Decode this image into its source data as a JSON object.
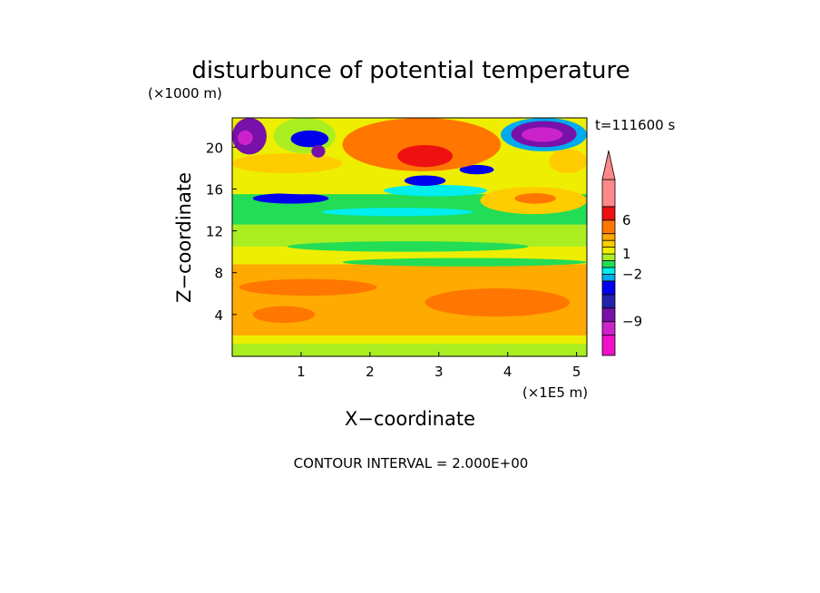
{
  "chart_data": {
    "type": "heatmap",
    "title": "disturbunce of potential temperature",
    "time_label": "t=111600 s",
    "x_axis": {
      "label": "X−coordinate",
      "unit_label": "(×1E5 m)",
      "range": [
        0,
        5.15
      ],
      "ticks": [
        1,
        2,
        3,
        4,
        5
      ],
      "tick_labels": [
        "1",
        "2",
        "3",
        "4",
        "5"
      ]
    },
    "y_axis": {
      "label": "Z−coordinate",
      "unit_label": "(×1000 m)",
      "range": [
        0,
        22.8
      ],
      "ticks": [
        4,
        8,
        12,
        16,
        20
      ],
      "tick_labels": [
        "4",
        "8",
        "12",
        "16",
        "20"
      ]
    },
    "contour_interval_text": "CONTOUR INTERVAL = 2.000E+00",
    "colorbar": {
      "labels": [
        {
          "text": "6",
          "value": 6
        },
        {
          "text": "1",
          "value": 1
        },
        {
          "text": "−2",
          "value": -2
        },
        {
          "text": "−9",
          "value": -9
        }
      ],
      "bands": [
        {
          "from": -14,
          "to": -11,
          "color": "#ee11c8"
        },
        {
          "from": -11,
          "to": -9,
          "color": "#cc22cc"
        },
        {
          "from": -9,
          "to": -7,
          "color": "#7711aa"
        },
        {
          "from": -7,
          "to": -5,
          "color": "#2222aa"
        },
        {
          "from": -5,
          "to": -3,
          "color": "#0000ee"
        },
        {
          "from": -3,
          "to": -2,
          "color": "#00aaee"
        },
        {
          "from": -2,
          "to": -1,
          "color": "#00eeee"
        },
        {
          "from": -1,
          "to": 0,
          "color": "#22dd55"
        },
        {
          "from": 0,
          "to": 1,
          "color": "#aaee22"
        },
        {
          "from": 1,
          "to": 2,
          "color": "#eeee00"
        },
        {
          "from": 2,
          "to": 3,
          "color": "#ffcc00"
        },
        {
          "from": 3,
          "to": 4,
          "color": "#ffaa00"
        },
        {
          "from": 4,
          "to": 6,
          "color": "#ff7700"
        },
        {
          "from": 6,
          "to": 8,
          "color": "#ee1111"
        },
        {
          "from": 8,
          "to": 12,
          "color": "#ff8888"
        }
      ],
      "extend_max_color": "#ff8888"
    },
    "regions": [
      {
        "x0": 0,
        "x1": 5.15,
        "z0": 0,
        "z1": 22.8,
        "value": 1.5
      },
      {
        "x0": 0,
        "x1": 5.15,
        "z0": 0,
        "z1": 1.2,
        "value": 0.5
      },
      {
        "x0": 0,
        "x1": 5.15,
        "z0": 2,
        "z1": 8.8,
        "value": 3.5
      },
      {
        "x0": 0.1,
        "x1": 2.1,
        "z0": 5.8,
        "z1": 7.4,
        "value": 4.5
      },
      {
        "x0": 2.8,
        "x1": 4.9,
        "z0": 3.8,
        "z1": 6.5,
        "value": 4.5
      },
      {
        "x0": 0.3,
        "x1": 1.2,
        "z0": 3.2,
        "z1": 4.8,
        "value": 4.5
      },
      {
        "x0": 0,
        "x1": 5.15,
        "z0": 10.5,
        "z1": 12.6,
        "value": 0.5
      },
      {
        "x0": 0.8,
        "x1": 4.3,
        "z0": 10,
        "z1": 11,
        "value": -0.5
      },
      {
        "x0": 1.6,
        "x1": 5.15,
        "z0": 8.6,
        "z1": 9.4,
        "value": -0.5
      },
      {
        "x0": 0,
        "x1": 5.15,
        "z0": 12.6,
        "z1": 15.5,
        "value": -0.5
      },
      {
        "x0": 1.3,
        "x1": 3.5,
        "z0": 13.4,
        "z1": 14.2,
        "value": -1.5
      },
      {
        "x0": 0.3,
        "x1": 1.4,
        "z0": 14.6,
        "z1": 15.6,
        "value": -4
      },
      {
        "x0": 3.6,
        "x1": 5.15,
        "z0": 13.6,
        "z1": 16.2,
        "value": 2.5
      },
      {
        "x0": 4.1,
        "x1": 4.7,
        "z0": 14.6,
        "z1": 15.6,
        "value": 5
      },
      {
        "x0": 0,
        "x1": 2.2,
        "z0": 15.5,
        "z1": 17.8,
        "value": 1.5
      },
      {
        "x0": 2.2,
        "x1": 3.7,
        "z0": 15.3,
        "z1": 16.4,
        "value": -1.5
      },
      {
        "x0": 2.5,
        "x1": 3.1,
        "z0": 16.3,
        "z1": 17.3,
        "value": -4
      },
      {
        "x0": 3.3,
        "x1": 3.8,
        "z0": 17.4,
        "z1": 18.3,
        "value": -4
      },
      {
        "x0": 1.6,
        "x1": 3.9,
        "z0": 17.7,
        "z1": 22.8,
        "value": 5
      },
      {
        "x0": 2.4,
        "x1": 3.2,
        "z0": 18.1,
        "z1": 20.2,
        "value": 7
      },
      {
        "x0": 0,
        "x1": 1.6,
        "z0": 17.5,
        "z1": 19.4,
        "value": 2.5
      },
      {
        "x0": 0,
        "x1": 0.5,
        "z0": 19.3,
        "z1": 22.8,
        "value": -8
      },
      {
        "x0": 0.08,
        "x1": 0.3,
        "z0": 20.2,
        "z1": 21.6,
        "value": -10
      },
      {
        "x0": 0.6,
        "x1": 1.5,
        "z0": 19.4,
        "z1": 22.8,
        "value": 0.5
      },
      {
        "x0": 0.85,
        "x1": 1.4,
        "z0": 20,
        "z1": 21.6,
        "value": -4
      },
      {
        "x0": 1.15,
        "x1": 1.35,
        "z0": 19,
        "z1": 20.2,
        "value": -8
      },
      {
        "x0": 3.9,
        "x1": 5.15,
        "z0": 19.6,
        "z1": 22.8,
        "value": -2.5
      },
      {
        "x0": 4.05,
        "x1": 5,
        "z0": 20,
        "z1": 22.5,
        "value": -8
      },
      {
        "x0": 4.2,
        "x1": 4.8,
        "z0": 20.5,
        "z1": 21.9,
        "value": -10
      },
      {
        "x0": 4.6,
        "x1": 5.15,
        "z0": 17.5,
        "z1": 19.8,
        "value": 2.5
      }
    ]
  }
}
